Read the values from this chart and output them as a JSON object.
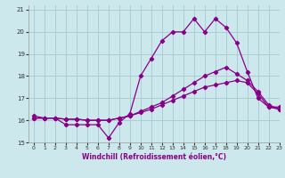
{
  "xlabel": "Windchill (Refroidissement éolien,°C)",
  "background_color": "#cce8ed",
  "grid_color": "#aacdd4",
  "line_color": "#880088",
  "xlim": [
    -0.5,
    23
  ],
  "ylim": [
    15,
    21.2
  ],
  "yticks": [
    15,
    16,
    17,
    18,
    19,
    20,
    21
  ],
  "xticks": [
    0,
    1,
    2,
    3,
    4,
    5,
    6,
    7,
    8,
    9,
    10,
    11,
    12,
    13,
    14,
    15,
    16,
    17,
    18,
    19,
    20,
    21,
    22,
    23
  ],
  "line1_x": [
    0,
    1,
    2,
    3,
    4,
    5,
    6,
    7,
    8,
    9,
    10,
    11,
    12,
    13,
    14,
    15,
    16,
    17,
    18,
    19,
    20,
    21,
    22,
    23
  ],
  "line1_y": [
    16.2,
    16.1,
    16.1,
    15.8,
    15.8,
    15.8,
    15.8,
    15.2,
    15.9,
    16.3,
    18.0,
    18.8,
    19.6,
    20.0,
    20.0,
    20.6,
    20.0,
    20.6,
    20.2,
    19.5,
    18.2,
    17.0,
    16.6,
    16.6
  ],
  "line2_x": [
    0,
    1,
    2,
    3,
    4,
    5,
    6,
    7,
    8,
    9,
    10,
    11,
    12,
    13,
    14,
    15,
    16,
    17,
    18,
    19,
    20,
    21,
    22,
    23
  ],
  "line2_y": [
    16.1,
    16.1,
    16.1,
    16.05,
    16.05,
    16.0,
    16.0,
    16.0,
    16.1,
    16.2,
    16.4,
    16.6,
    16.8,
    17.1,
    17.4,
    17.7,
    18.0,
    18.2,
    18.4,
    18.1,
    17.8,
    17.3,
    16.7,
    16.5
  ],
  "line3_x": [
    0,
    1,
    2,
    3,
    4,
    5,
    6,
    7,
    8,
    9,
    10,
    11,
    12,
    13,
    14,
    15,
    16,
    17,
    18,
    19,
    20,
    21,
    22,
    23
  ],
  "line3_y": [
    16.1,
    16.1,
    16.1,
    16.05,
    16.05,
    16.0,
    16.0,
    16.0,
    16.1,
    16.2,
    16.35,
    16.5,
    16.7,
    16.9,
    17.1,
    17.3,
    17.5,
    17.6,
    17.7,
    17.8,
    17.7,
    17.2,
    16.6,
    16.5
  ]
}
